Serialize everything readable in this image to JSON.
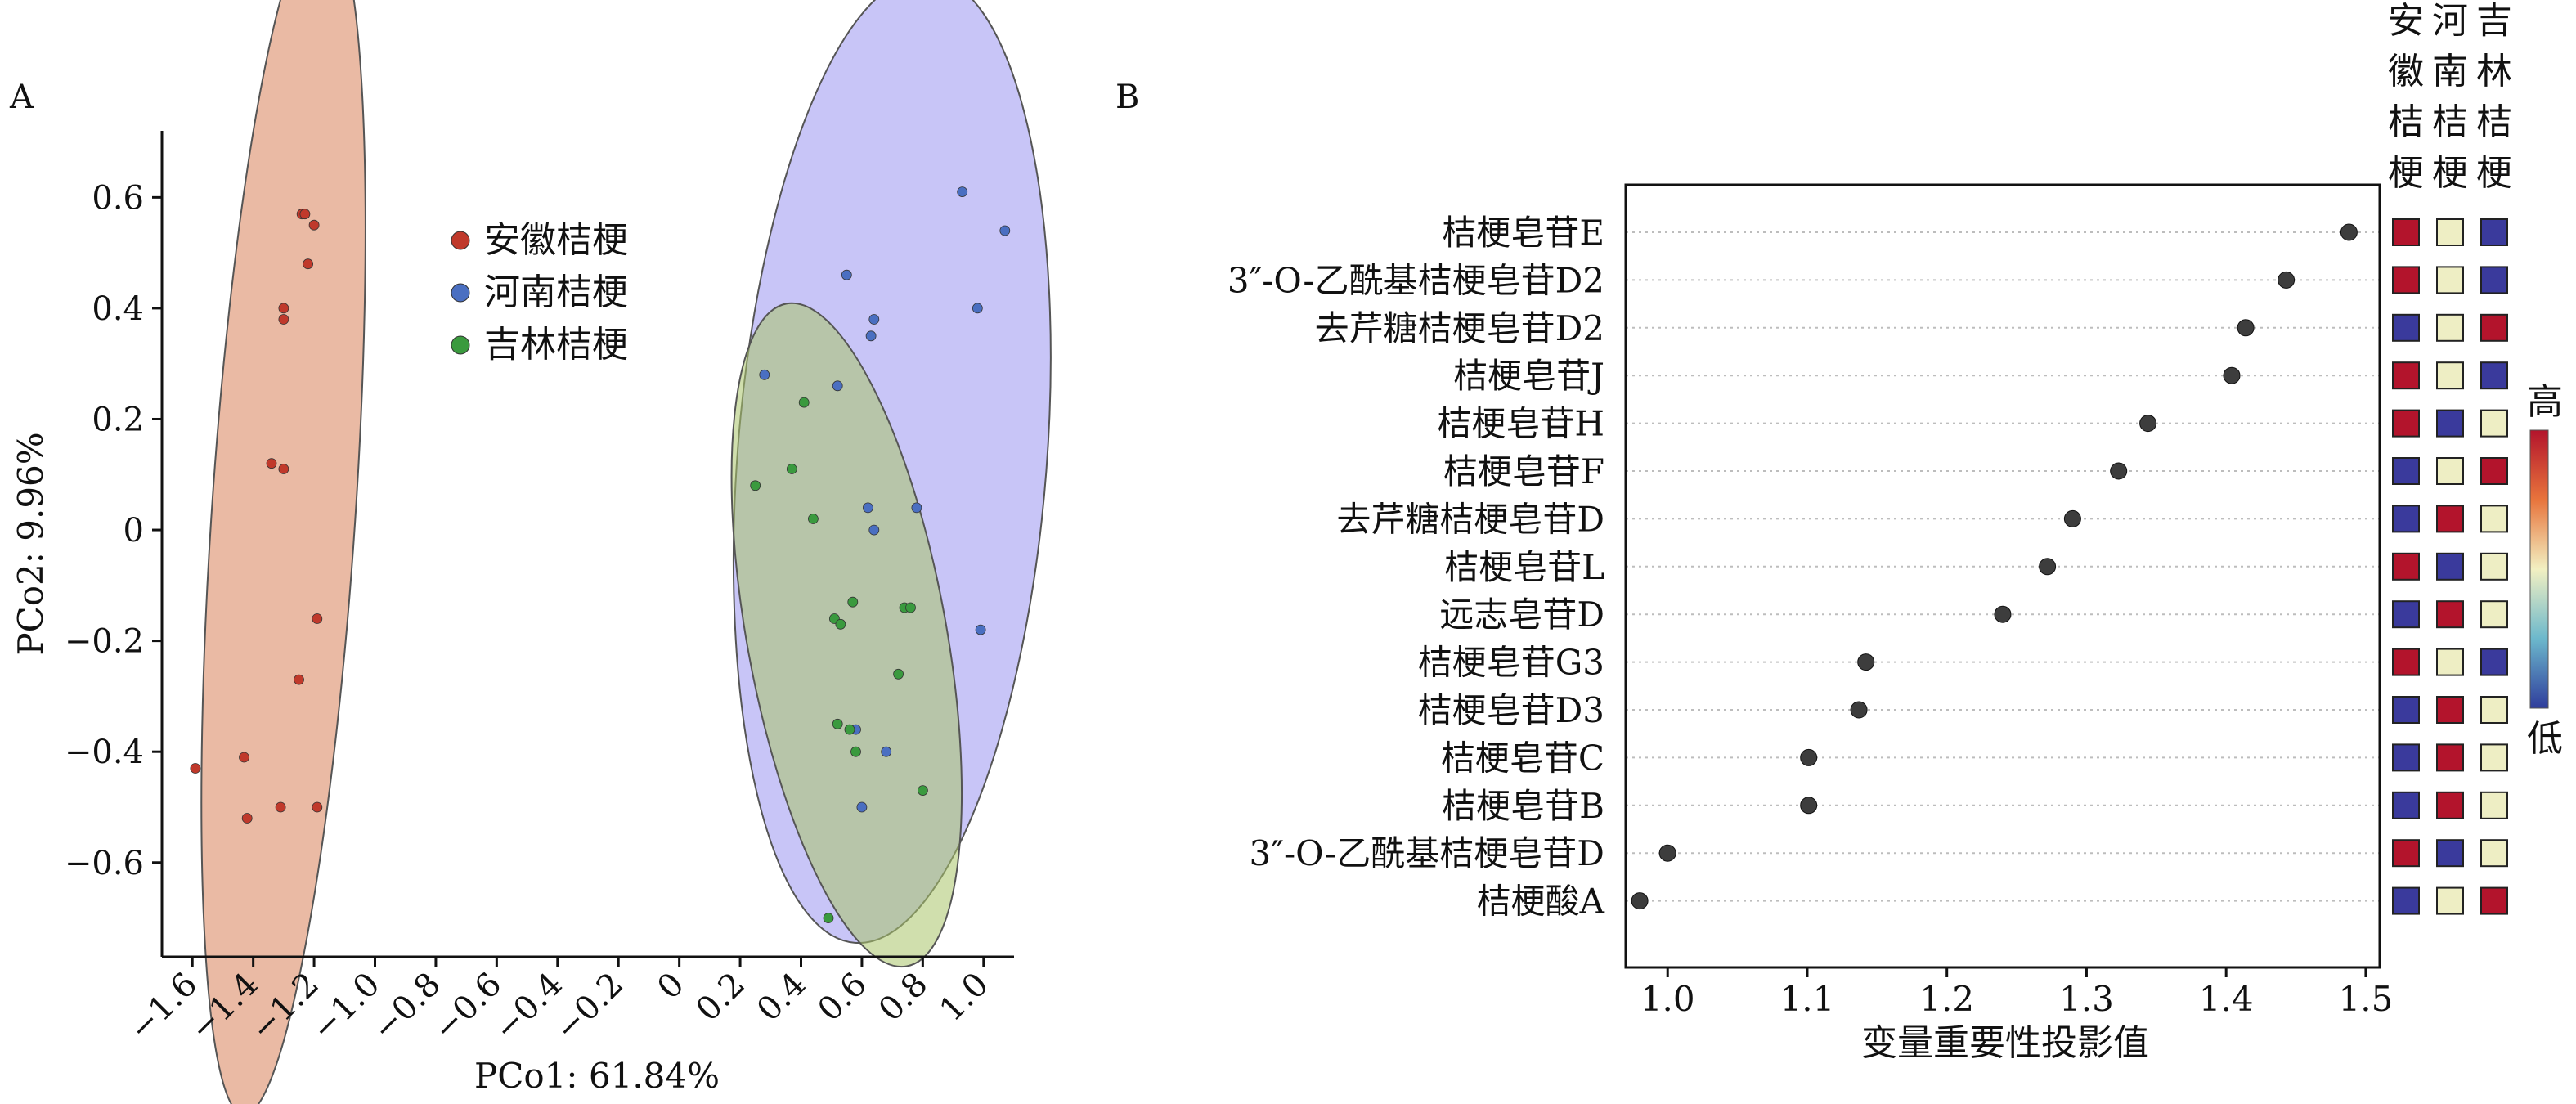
{
  "chart_data": [
    {
      "panel": "A",
      "type": "scatter",
      "xlabel": "PCo1: 61.84%",
      "ylabel": "PCo2: 9.96%",
      "xlim": [
        -1.7,
        1.1
      ],
      "ylim": [
        -0.77,
        0.72
      ],
      "xticks": [
        "−1.6",
        "−1.4",
        "−1.2",
        "−1.0",
        "−0.8",
        "−0.6",
        "−0.4",
        "−0.2",
        "0",
        "0.2",
        "0.4",
        "0.6",
        "0.8",
        "1.0"
      ],
      "yticks": [
        "0.6",
        "0.4",
        "0.2",
        "0",
        "−0.2",
        "−0.4",
        "−0.6"
      ],
      "legend_position": "top-left",
      "series": [
        {
          "name": "安徽桔梗",
          "color": "#c0392b",
          "ellipse_color": "#d9825a",
          "points": [
            [
              -1.59,
              -0.43
            ],
            [
              -1.43,
              -0.41
            ],
            [
              -1.42,
              -0.52
            ],
            [
              -1.34,
              0.12
            ],
            [
              -1.31,
              -0.5
            ],
            [
              -1.3,
              0.38
            ],
            [
              -1.3,
              0.4
            ],
            [
              -1.3,
              0.11
            ],
            [
              -1.25,
              -0.27
            ],
            [
              -1.24,
              0.57
            ],
            [
              -1.23,
              0.57
            ],
            [
              -1.22,
              0.48
            ],
            [
              -1.2,
              0.55
            ],
            [
              -1.19,
              -0.16
            ],
            [
              -1.19,
              -0.5
            ]
          ]
        },
        {
          "name": "河南桔梗",
          "color": "#4a6fc1",
          "ellipse_color": "#9b96f0",
          "points": [
            [
              0.28,
              0.28
            ],
            [
              0.52,
              0.26
            ],
            [
              0.55,
              0.46
            ],
            [
              0.63,
              0.35
            ],
            [
              0.64,
              0.38
            ],
            [
              0.62,
              0.04
            ],
            [
              0.64,
              0
            ],
            [
              0.78,
              0.04
            ],
            [
              0.93,
              0.61
            ],
            [
              0.98,
              0.4
            ],
            [
              1.07,
              0.54
            ],
            [
              0.99,
              -0.18
            ],
            [
              0.68,
              -0.4
            ],
            [
              0.6,
              -0.5
            ],
            [
              0.58,
              -0.36
            ]
          ]
        },
        {
          "name": "吉林桔梗",
          "color": "#3a9a3e",
          "ellipse_color": "#aac46a",
          "points": [
            [
              0.25,
              0.08
            ],
            [
              0.37,
              0.11
            ],
            [
              0.41,
              0.23
            ],
            [
              0.44,
              0.02
            ],
            [
              0.49,
              -0.7
            ],
            [
              0.51,
              -0.16
            ],
            [
              0.53,
              -0.17
            ],
            [
              0.52,
              -0.35
            ],
            [
              0.57,
              -0.13
            ],
            [
              0.58,
              -0.4
            ],
            [
              0.72,
              -0.26
            ],
            [
              0.74,
              -0.14
            ],
            [
              0.76,
              -0.14
            ],
            [
              0.8,
              -0.47
            ],
            [
              0.56,
              -0.36
            ]
          ]
        }
      ]
    },
    {
      "panel": "B",
      "type": "scatter",
      "xlabel": "变量重要性投影值",
      "xlim": [
        0.97,
        1.51
      ],
      "xticks": [
        1.0,
        1.1,
        1.2,
        1.3,
        1.4,
        1.5
      ],
      "categories": [
        "桔梗皂苷E",
        "3″-O-乙酰基桔梗皂苷D2",
        "去芹糖桔梗皂苷D2",
        "桔梗皂苷J",
        "桔梗皂苷H",
        "桔梗皂苷F",
        "去芹糖桔梗皂苷D",
        "桔梗皂苷L",
        "远志皂苷D",
        "桔梗皂苷G3",
        "桔梗皂苷D3",
        "桔梗皂苷C",
        "桔梗皂苷B",
        "3″-O-乙酰基桔梗皂苷D",
        "桔梗酸A"
      ],
      "values": [
        1.488,
        1.443,
        1.414,
        1.404,
        1.344,
        1.323,
        1.29,
        1.272,
        1.24,
        1.142,
        1.137,
        1.101,
        1.101,
        1.0,
        0.98
      ],
      "point_color": "#3d3d3d",
      "heatmap": {
        "columns": [
          "安徽桔梗",
          "河南桔梗",
          "吉林桔梗"
        ],
        "legend_high": "高",
        "legend_low": "低",
        "colors": {
          "high": "#b3142c",
          "mid": "#eeeec4",
          "low": "#3a3a9c"
        },
        "levels": [
          [
            "high",
            "mid",
            "low"
          ],
          [
            "high",
            "mid",
            "low"
          ],
          [
            "low",
            "mid",
            "high"
          ],
          [
            "high",
            "mid",
            "low"
          ],
          [
            "high",
            "low",
            "mid"
          ],
          [
            "low",
            "mid",
            "high"
          ],
          [
            "low",
            "high",
            "mid"
          ],
          [
            "high",
            "low",
            "mid"
          ],
          [
            "low",
            "high",
            "mid"
          ],
          [
            "high",
            "mid",
            "low"
          ],
          [
            "low",
            "high",
            "mid"
          ],
          [
            "low",
            "high",
            "mid"
          ],
          [
            "low",
            "high",
            "mid"
          ],
          [
            "high",
            "low",
            "mid"
          ],
          [
            "low",
            "mid",
            "high"
          ]
        ]
      }
    }
  ],
  "panels": {
    "a_label": "A",
    "b_label": "B"
  }
}
